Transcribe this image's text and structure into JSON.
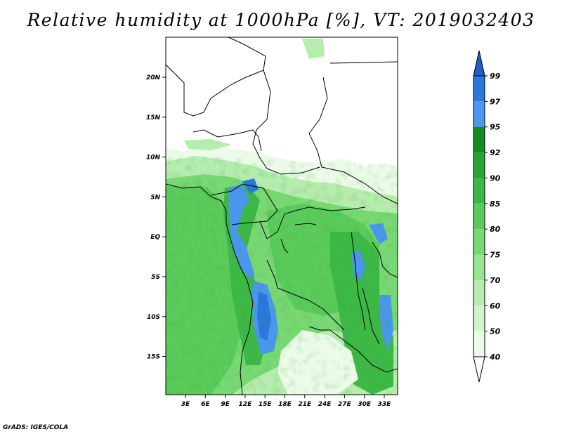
{
  "title": "Relative humidity at 1000hPa [%], VT: 2019032403",
  "credit": "GrADS: IGES/COLA",
  "map": {
    "lat_ticks": [
      "20N",
      "15N",
      "10N",
      "5N",
      "EQ",
      "5S",
      "10S",
      "15S"
    ],
    "lon_ticks": [
      "3E",
      "6E",
      "9E",
      "12E",
      "15E",
      "18E",
      "21E",
      "24E",
      "27E",
      "30E",
      "33E"
    ]
  },
  "colorbar": {
    "labels": [
      "99",
      "97",
      "95",
      "92",
      "90",
      "85",
      "80",
      "75",
      "70",
      "60",
      "50",
      "40"
    ],
    "colors": [
      "#1c5fc8",
      "#2a78dc",
      "#4b96ee",
      "#158c22",
      "#27a432",
      "#3cb846",
      "#5acb5a",
      "#78d873",
      "#98e48f",
      "#b6ecae",
      "#d2f4cb",
      "#ebfbe8",
      "#ffffff"
    ],
    "top_arrow_color": "#1c5fc8"
  }
}
